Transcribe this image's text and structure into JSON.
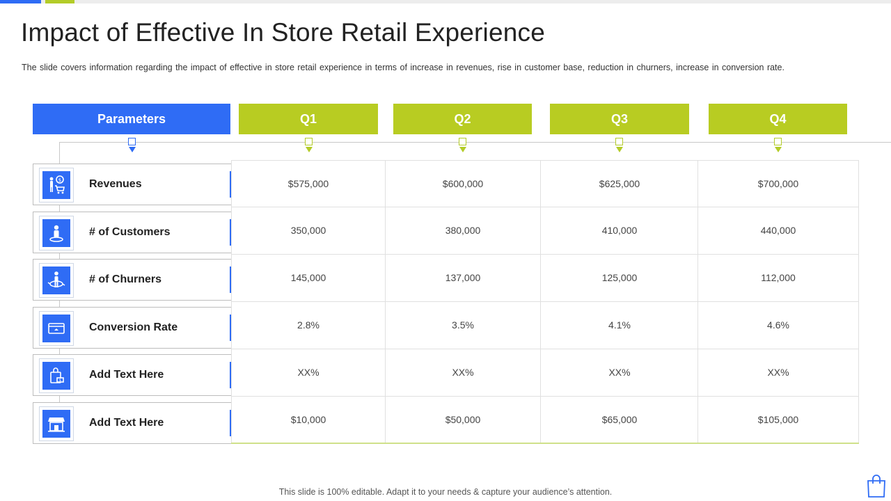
{
  "slide": {
    "title": "Impact of Effective In Store Retail Experience",
    "subtitle": "The slide covers information  regarding  the impact of effective  in store retail experience  in terms of increase in revenues,  rise in customer base, reduction in churners, increase in conversion  rate.",
    "footer": "This slide is 100% editable. Adapt it to your needs & capture your audience’s attention."
  },
  "colors": {
    "blue": "#2f6cf5",
    "green": "#b8cc22"
  },
  "table": {
    "param_header": "Parameters",
    "quarters": [
      "Q1",
      "Q2",
      "Q3",
      "Q4"
    ],
    "rows": [
      {
        "label": "Revenues",
        "icon": "revenue-person-cart-icon",
        "values": [
          "$575,000",
          "$600,000",
          "$625,000",
          "$700,000"
        ]
      },
      {
        "label": "# of Customers",
        "icon": "customer-location-icon",
        "values": [
          "350,000",
          "380,000",
          "410,000",
          "440,000"
        ]
      },
      {
        "label": "# of Churners",
        "icon": "churner-person-icon",
        "values": [
          "145,000",
          "137,000",
          "125,000",
          "112,000"
        ]
      },
      {
        "label": "Conversion Rate",
        "icon": "card-conversion-icon",
        "values": [
          "2.8%",
          "3.5%",
          "4.1%",
          "4.6%"
        ]
      },
      {
        "label": "Add Text Here",
        "icon": "shopping-bag-icon",
        "values": [
          "XX%",
          "XX%",
          "XX%",
          "XX%"
        ]
      },
      {
        "label": "Add Text Here",
        "icon": "storefront-icon",
        "values": [
          "$10,000",
          "$50,000",
          "$65,000",
          "$105,000"
        ]
      }
    ]
  }
}
